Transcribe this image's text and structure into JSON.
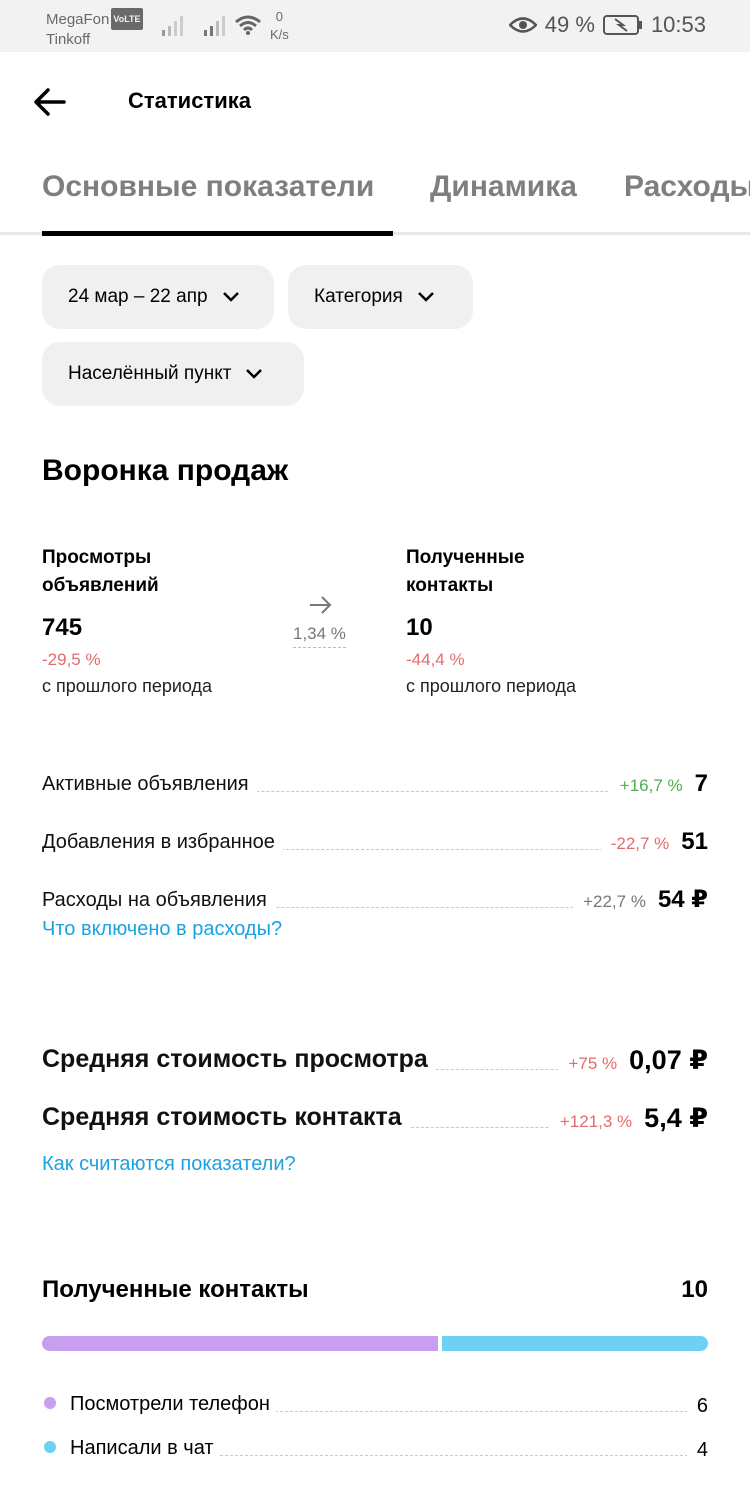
{
  "status_bar": {
    "carrier1": "MegaFon",
    "volte": "VoLTE",
    "carrier2": "Tinkoff",
    "net_speed_value": "0",
    "net_speed_unit": "K/s",
    "battery_percent": "49 %",
    "time": "10:53"
  },
  "header": {
    "title": "Статистика"
  },
  "tabs": [
    {
      "label": "Основные показатели",
      "active": true
    },
    {
      "label": "Динамика",
      "active": false
    },
    {
      "label": "Расходы",
      "active": false
    }
  ],
  "filters": {
    "period": "24 мар – 22 апр",
    "category": "Категория",
    "locality": "Населённый пункт"
  },
  "funnel": {
    "title": "Воронка продаж",
    "views_label_line1": "Просмотры",
    "views_label_line2": "объявлений",
    "views_value": "745",
    "views_delta": "-29,5 %",
    "views_sub": "с прошлого периода",
    "conversion": "1,34 %",
    "contacts_label_line1": "Полученные",
    "contacts_label_line2": "контакты",
    "contacts_value": "10",
    "contacts_delta": "-44,4 %",
    "contacts_sub": "с прошлого периода"
  },
  "metrics": [
    {
      "label": "Активные объявления",
      "delta": "+16,7 %",
      "value": "7",
      "delta_color": "#4caf50"
    },
    {
      "label": "Добавления в избранное",
      "delta": "-22,7 %",
      "value": "51",
      "delta_color": "#e46b6b"
    },
    {
      "label": "Расходы на объявления",
      "delta": "+22,7 %",
      "value": "54 ₽",
      "delta_color": "#777777"
    }
  ],
  "expenses_link": "Что включено в расходы?",
  "averages": [
    {
      "label": "Средняя стоимость просмотра",
      "delta": "+75 %",
      "value": "0,07 ₽",
      "delta_color": "#e46b6b"
    },
    {
      "label": "Средняя стоимость контакта",
      "delta": "+121,3 %",
      "value": "5,4 ₽",
      "delta_color": "#e46b6b"
    }
  ],
  "averages_link": "Как считаются показатели?",
  "contacts": {
    "title": "Полученные контакты",
    "total": "10",
    "items": [
      {
        "label": "Посмотрели телефон",
        "value": "6",
        "color": "#c79ef0"
      },
      {
        "label": "Написали в чат",
        "value": "4",
        "color": "#6fd0f5"
      }
    ]
  }
}
